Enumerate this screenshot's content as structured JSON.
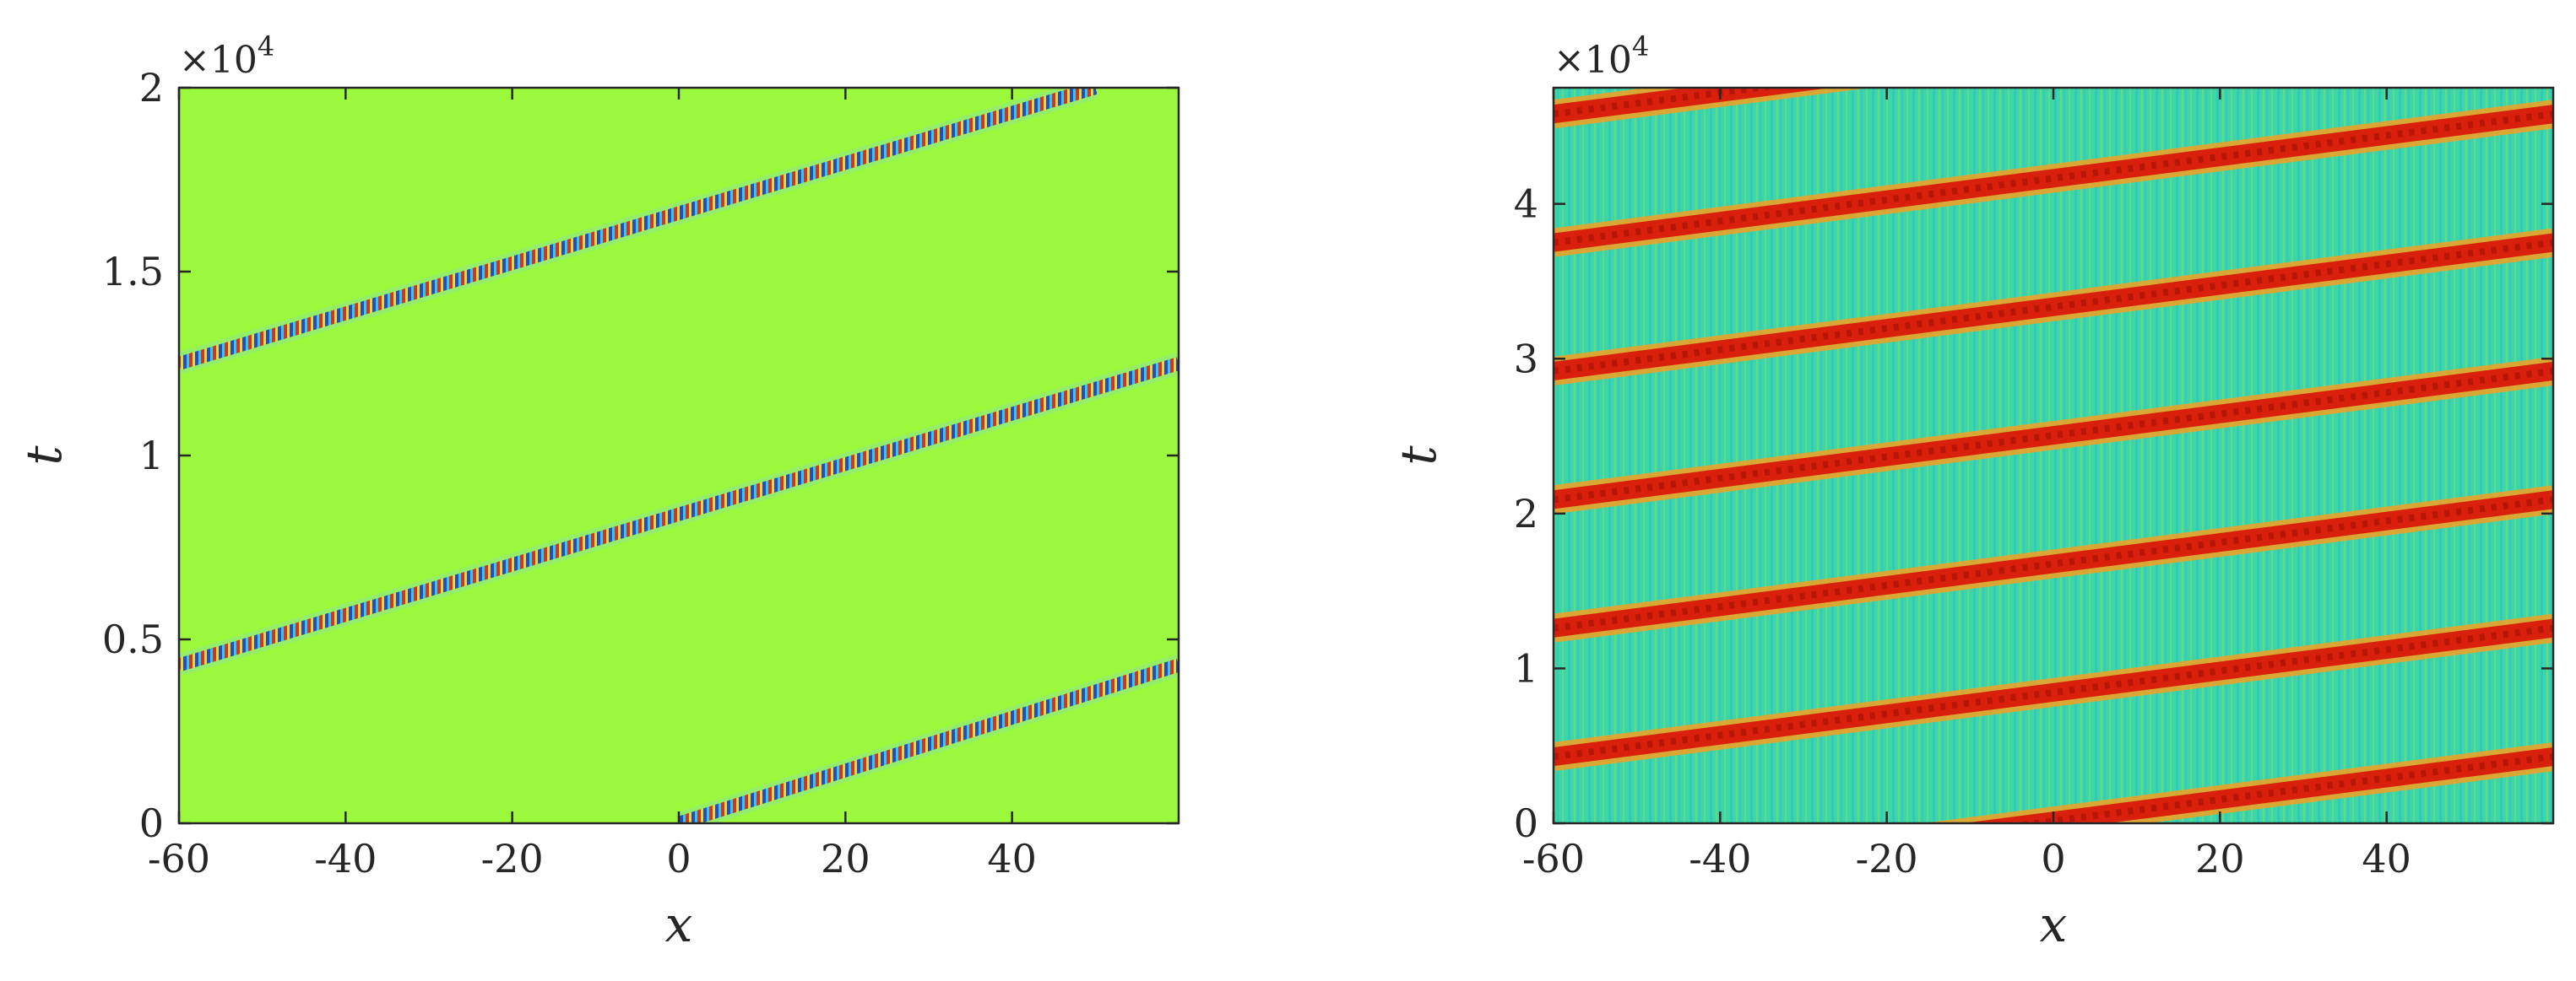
{
  "chart_data": [
    {
      "type": "heatmap",
      "title": "",
      "xlabel": "x",
      "ylabel": "t",
      "xlim": [
        -60,
        60
      ],
      "ylim": [
        0,
        20000
      ],
      "y_multiplier_label": "×10",
      "y_multiplier_exponent": "4",
      "xticks": [
        -60,
        -40,
        -20,
        0,
        20,
        40
      ],
      "xtick_labels": [
        "-60",
        "-40",
        "-20",
        "0",
        "20",
        "40"
      ],
      "yticks": [
        0,
        5000,
        10000,
        15000,
        20000
      ],
      "ytick_labels": [
        "0",
        "0.5",
        "1",
        "1.5",
        "2"
      ],
      "colormap": "jet",
      "background_color": "#9cf83c",
      "wave_color_positive": "#c8281a",
      "wave_color_negative": "#1a3cc8",
      "grid": false,
      "band_pattern": "narrow oscillatory wave packets on a uniform background",
      "bands": [
        {
          "t_start": 0,
          "x_start": 0,
          "x_end": 60,
          "t_end": 4300
        },
        {
          "t_start": 4300,
          "x_start": -60,
          "x_end": 60,
          "t_end": 12500
        },
        {
          "t_start": 12500,
          "x_start": -60,
          "x_end": 50,
          "t_end": 20000
        }
      ]
    },
    {
      "type": "heatmap",
      "title": "",
      "xlabel": "x",
      "ylabel": "t",
      "xlim": [
        -60,
        60
      ],
      "ylim": [
        0,
        47500
      ],
      "y_multiplier_label": "×10",
      "y_multiplier_exponent": "4",
      "xticks": [
        -60,
        -40,
        -20,
        0,
        20,
        40
      ],
      "xtick_labels": [
        "-60",
        "-40",
        "-20",
        "0",
        "20",
        "40"
      ],
      "yticks": [
        0,
        10000,
        20000,
        30000,
        40000
      ],
      "ytick_labels": [
        "0",
        "1",
        "2",
        "3",
        "4"
      ],
      "colormap": "jet",
      "background_color": "#3ed6a8",
      "band_color": "#d8200c",
      "band_edge_color": "#f5a020",
      "grid": false,
      "band_pattern": "broad red traveling bands on a noisy cyan-green background",
      "bands": [
        {
          "t_start": -4000,
          "x_start": -60,
          "x_end": 60,
          "t_end": 4300
        },
        {
          "t_start": 4300,
          "x_start": -60,
          "x_end": 60,
          "t_end": 12600
        },
        {
          "t_start": 12600,
          "x_start": -60,
          "x_end": 60,
          "t_end": 20900
        },
        {
          "t_start": 20900,
          "x_start": -60,
          "x_end": 60,
          "t_end": 29200
        },
        {
          "t_start": 29200,
          "x_start": -60,
          "x_end": 60,
          "t_end": 37500
        },
        {
          "t_start": 37500,
          "x_start": -60,
          "x_end": 60,
          "t_end": 45800
        },
        {
          "t_start": 45800,
          "x_start": -60,
          "x_end": 60,
          "t_end": 54100
        }
      ]
    }
  ]
}
